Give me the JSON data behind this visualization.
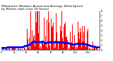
{
  "title": "Milwaukee Weather Actual and Average Wind Speed\nby Minute mph (Last 24 Hours)",
  "n_points": 144,
  "bar_color": "#ff0000",
  "avg_color": "#0000ff",
  "background_color": "#ffffff",
  "ylim": [
    0,
    8
  ],
  "yticks": [
    0,
    1,
    2,
    3,
    4,
    5,
    6,
    7,
    8
  ],
  "grid_color": "#cccccc",
  "title_fontsize": 3.2,
  "tick_fontsize": 2.5,
  "avg_linewidth": 0.6,
  "avg_markersize": 0.8,
  "n_gridlines": 4,
  "seed": 42
}
